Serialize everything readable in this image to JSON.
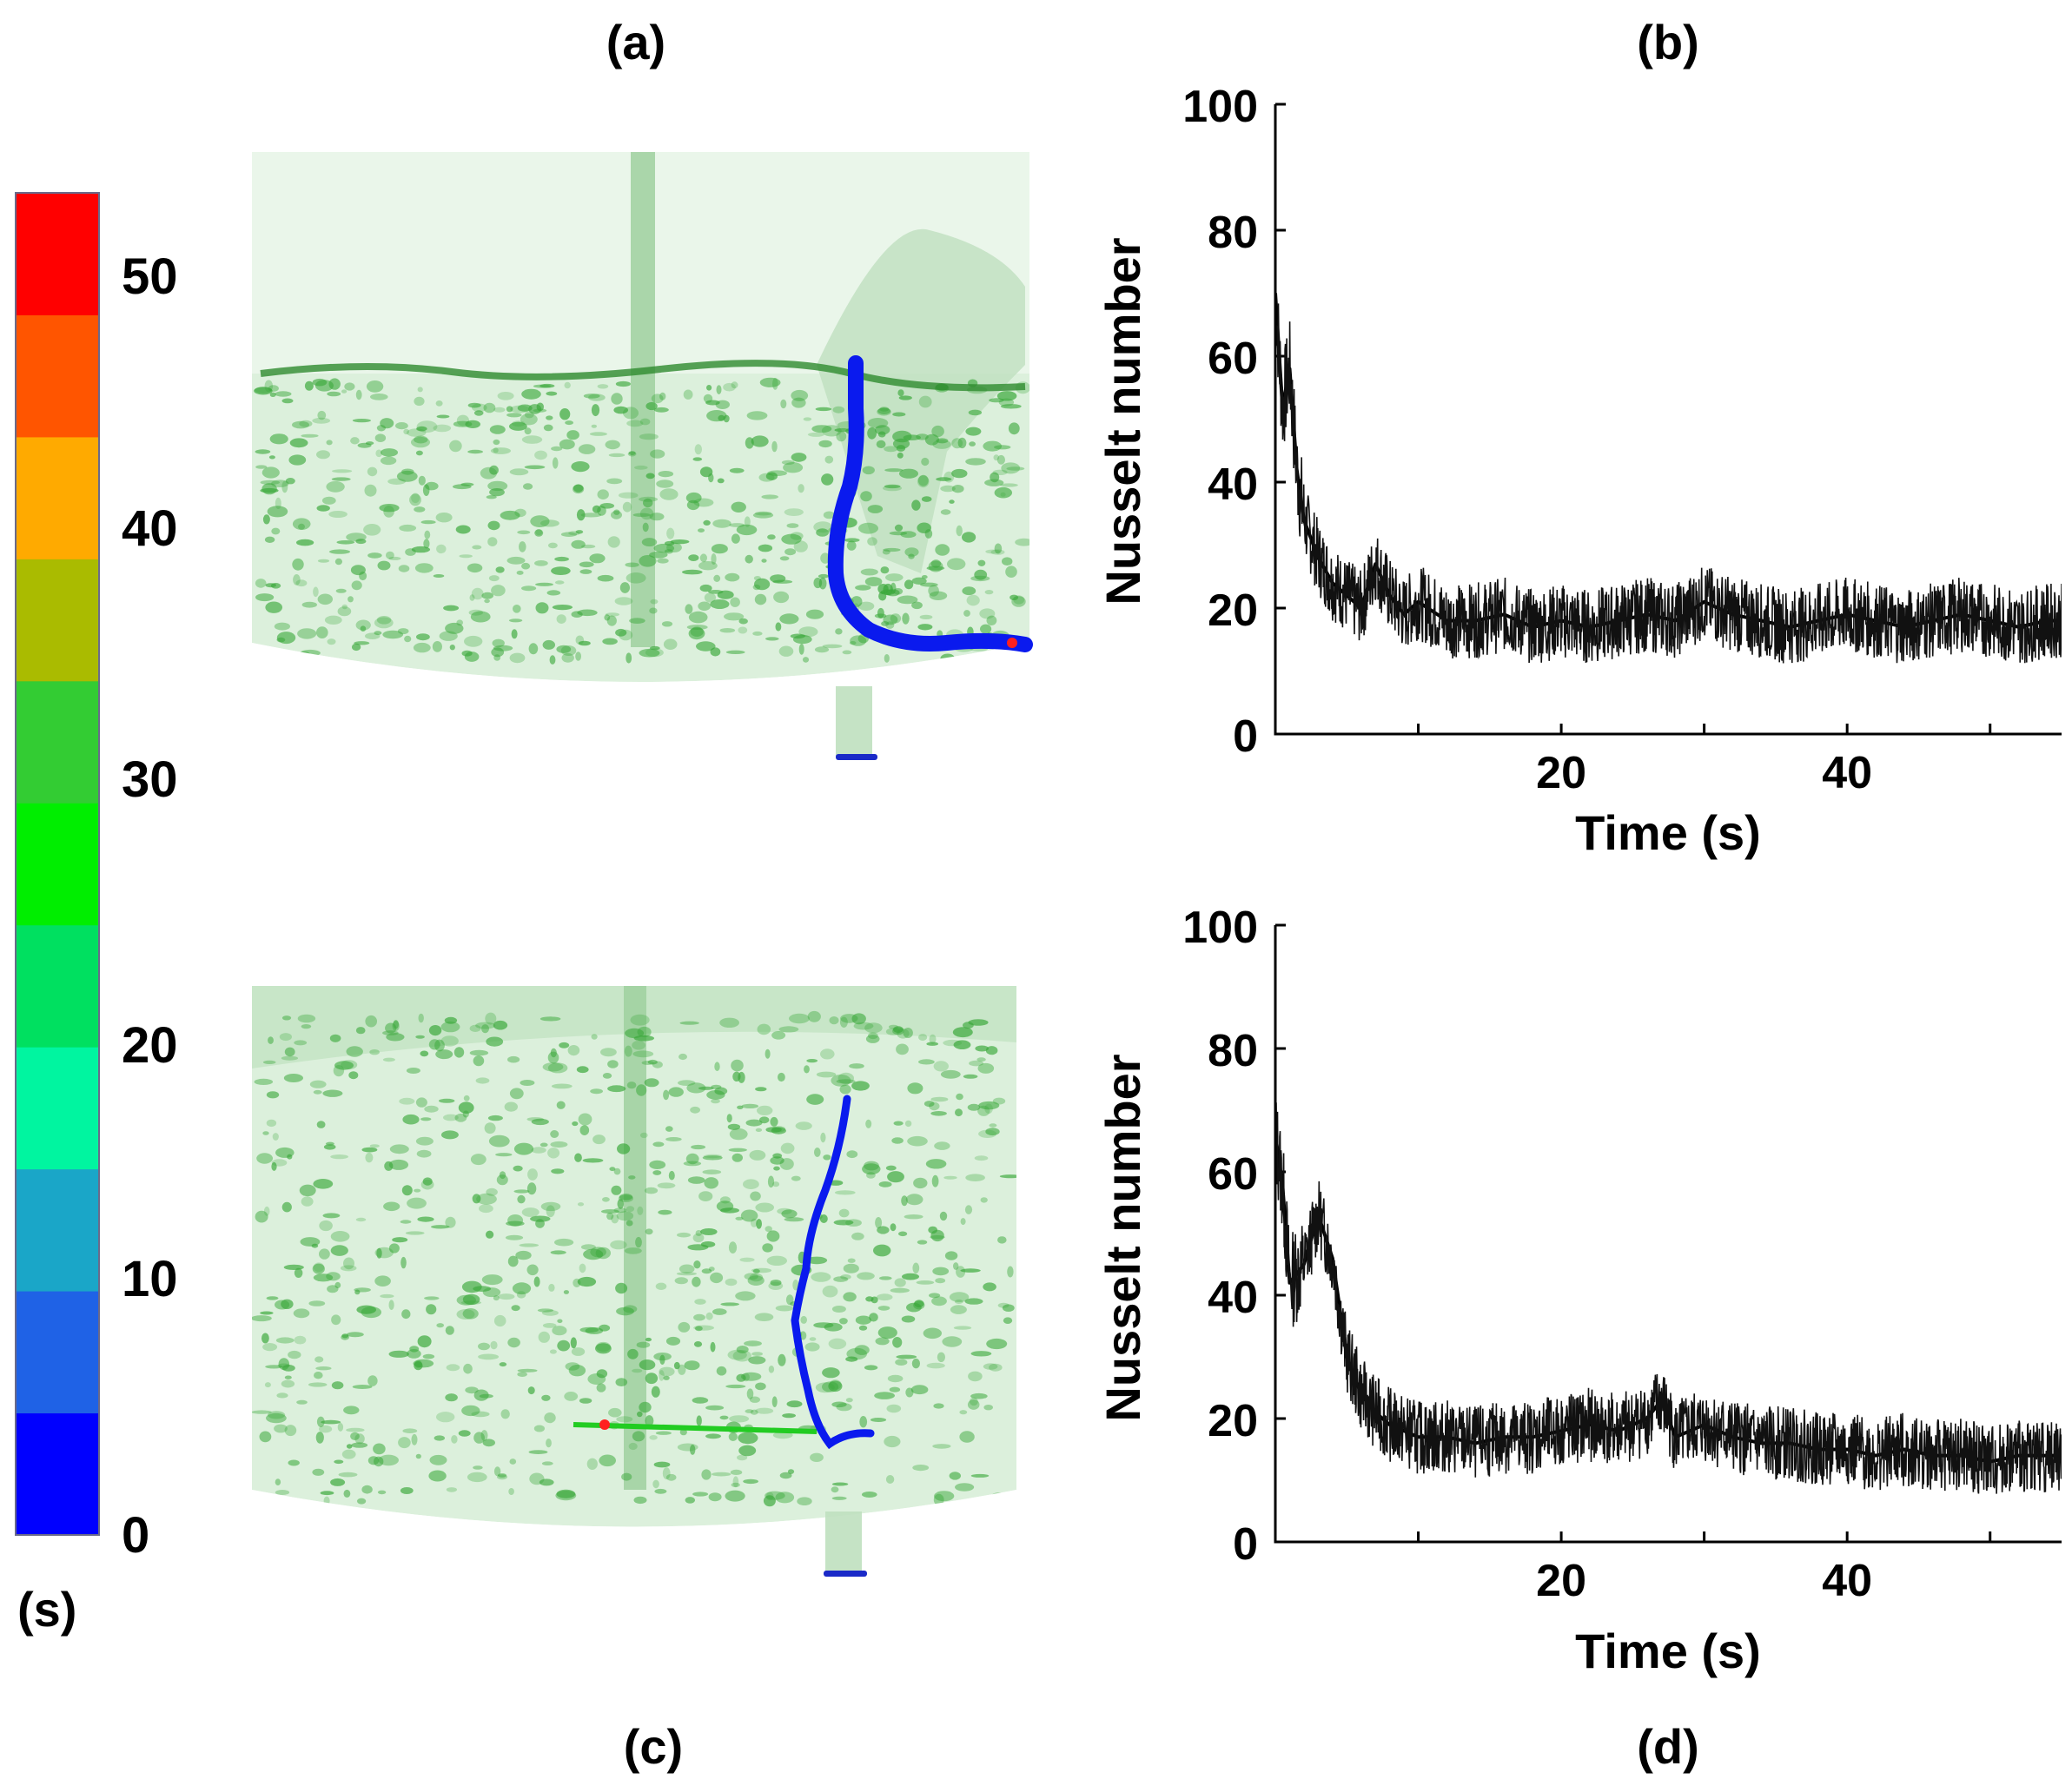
{
  "panel_labels": {
    "a": "(a)",
    "b": "(b)",
    "c": "(c)",
    "d": "(d)"
  },
  "colorbar": {
    "unit": "(s)",
    "tick_labels": [
      "0",
      "10",
      "20",
      "30",
      "40",
      "50"
    ],
    "colors": [
      "#0000ff",
      "#1f62e6",
      "#1aa6c8",
      "#00f5a0",
      "#00e060",
      "#00ee00",
      "#33cc33",
      "#aabb00",
      "#ffaa00",
      "#ff5500",
      "#ff0000"
    ]
  },
  "vessel": {
    "fluid_color": "#cfe9cf",
    "particle_color": "#3aa83a",
    "trajectory_color": "#0a1aee"
  },
  "chart_data": [
    {
      "type": "line",
      "panel": "(b)",
      "xlabel": "Time (s)",
      "ylabel": "Nusselt number",
      "xlim": [
        0,
        55
      ],
      "ylim": [
        0,
        100
      ],
      "xticks": [
        20,
        40
      ],
      "yticks": [
        0,
        20,
        40,
        60,
        80,
        100
      ],
      "series": [
        {
          "name": "Nusselt number",
          "x": [
            0,
            0.5,
            1,
            1.5,
            2,
            3,
            4,
            5,
            6,
            7,
            8,
            9,
            10,
            12,
            14,
            16,
            18,
            20,
            22,
            24,
            26,
            28,
            30,
            32,
            34,
            36,
            38,
            40,
            42,
            44,
            46,
            48,
            50,
            52,
            54,
            55
          ],
          "y": [
            70,
            52,
            58,
            42,
            34,
            28,
            24,
            22,
            20,
            27,
            22,
            19,
            21,
            18,
            18,
            19,
            17,
            18,
            17,
            18,
            19,
            18,
            21,
            19,
            18,
            17,
            18,
            19,
            18,
            17,
            18,
            19,
            18,
            17,
            18,
            18
          ]
        }
      ]
    },
    {
      "type": "line",
      "panel": "(d)",
      "xlabel": "Time (s)",
      "ylabel": "Nusselt number",
      "xlim": [
        0,
        55
      ],
      "ylim": [
        0,
        100
      ],
      "xticks": [
        20,
        40
      ],
      "yticks": [
        0,
        20,
        40,
        60,
        80,
        100
      ],
      "series": [
        {
          "name": "Nusselt number",
          "x": [
            0,
            0.5,
            1,
            2,
            3,
            4,
            5,
            6,
            7,
            8,
            9,
            10,
            12,
            14,
            16,
            18,
            20,
            22,
            24,
            26,
            27,
            28,
            30,
            32,
            34,
            36,
            38,
            40,
            42,
            44,
            46,
            48,
            50,
            52,
            54,
            55
          ],
          "y": [
            66,
            58,
            42,
            45,
            53,
            46,
            30,
            24,
            21,
            19,
            18,
            17,
            17,
            16,
            17,
            17,
            18,
            19,
            18,
            20,
            23,
            17,
            19,
            17,
            16,
            16,
            15,
            15,
            14,
            15,
            14,
            14,
            13,
            14,
            14,
            14
          ]
        }
      ]
    }
  ]
}
